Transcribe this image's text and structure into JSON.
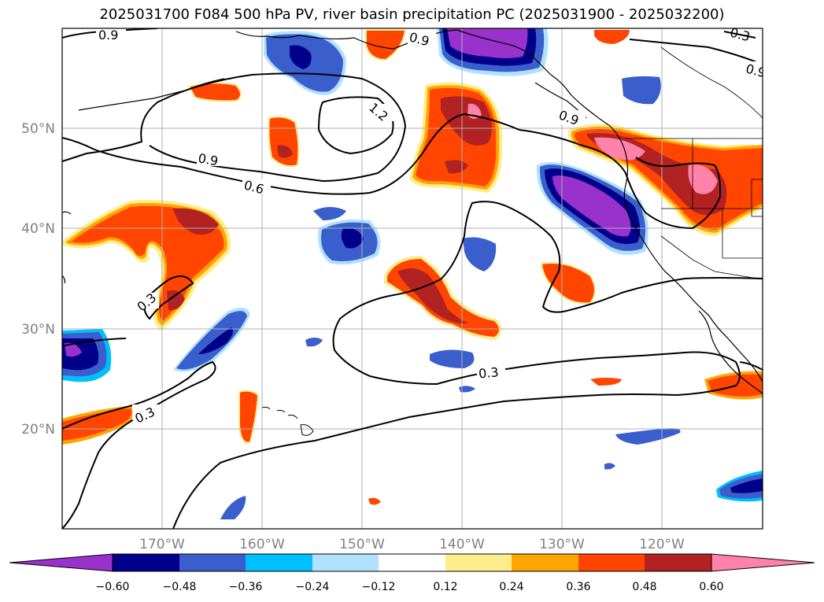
{
  "title": "2025031700 F084 500 hPa PV, river basin precipitation PC (2025031900 - 2025032200)",
  "map": {
    "lon_range": [
      -180,
      -110
    ],
    "lat_range": [
      10,
      60
    ],
    "gridlines": true,
    "lat_labels": [
      "50°N",
      "40°N",
      "30°N",
      "20°N"
    ],
    "lon_labels": [
      "170°W",
      "160°W",
      "150°W",
      "140°W",
      "130°W",
      "120°W"
    ]
  },
  "contours": {
    "variable": "500 hPa PV",
    "labels": [
      {
        "text": "0.9"
      },
      {
        "text": "0.9"
      },
      {
        "text": "0.9"
      },
      {
        "text": "0.9"
      },
      {
        "text": "0.3"
      },
      {
        "text": "0.3"
      },
      {
        "text": "1.2"
      },
      {
        "text": "0.6"
      },
      {
        "text": "0.3"
      },
      {
        "text": "0.3"
      },
      {
        "text": "0.3"
      },
      {
        "text": "0.9"
      }
    ]
  },
  "colorbar": {
    "ticks": [
      "−0.60",
      "−0.48",
      "−0.36",
      "−0.24",
      "−0.12",
      "0.12",
      "0.24",
      "0.36",
      "0.48",
      "0.60"
    ],
    "colors": [
      "#9932cc",
      "#00008b",
      "#3a5fcd",
      "#00bfff",
      "#b0e2ff",
      "#ffffff",
      "#ffec8b",
      "#ffa500",
      "#ff4500",
      "#b22222",
      "#ff82ab"
    ],
    "extend": "both"
  },
  "palette": {
    "neg_strong": "#9932cc",
    "neg_2": "#00008b",
    "neg_3": "#3a5fcd",
    "neg_4": "#00bfff",
    "neg_5": "#b0e2ff",
    "pos_1": "#ffec8b",
    "pos_2": "#ffa500",
    "pos_3": "#ff4500",
    "pos_4": "#b22222",
    "pos_5": "#ff82ab"
  }
}
